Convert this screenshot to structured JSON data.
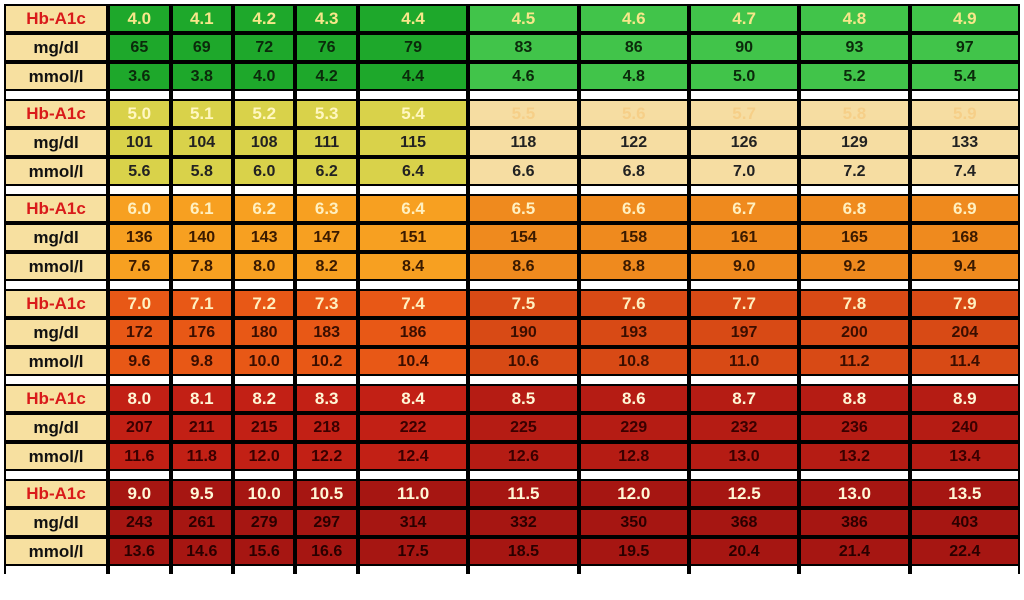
{
  "labels": {
    "hba1c": "Hb-A1c",
    "mgdl": "mg/dl",
    "mmoll": "mmol/l"
  },
  "layout": {
    "labelColWidth": 100,
    "narrowColWidth": 60,
    "wideColWidth": 106,
    "narrowCols": 4,
    "wideCols": 6,
    "rowHeightPx": 29,
    "spacerHeightPx": 8,
    "cellFontSize": 16,
    "hba1cFontSize": 17,
    "labelFontSize": 17,
    "borderColor": "#000000",
    "borderWidth": 2,
    "labelBg": "#f7e0a0",
    "labelColorHba1c": "#d91a1a",
    "labelColorOther": "#111111"
  },
  "groups": [
    {
      "hba1c": [
        "4.0",
        "4.1",
        "4.2",
        "4.3",
        "4.4",
        "4.5",
        "4.6",
        "4.7",
        "4.8",
        "4.9"
      ],
      "mgdl": [
        "65",
        "69",
        "72",
        "76",
        "79",
        "83",
        "86",
        "90",
        "93",
        "97"
      ],
      "mmoll": [
        "3.6",
        "3.8",
        "4.0",
        "4.2",
        "4.4",
        "4.6",
        "4.8",
        "5.0",
        "5.2",
        "5.4"
      ],
      "hba1cBg": [
        "#1ea82b",
        "#1ea82b",
        "#1ea82b",
        "#1ea82b",
        "#1ea82b",
        "#41c44a",
        "#41c44a",
        "#41c44a",
        "#41c44a",
        "#41c44a"
      ],
      "hba1cTextColor": [
        "#f7e78a",
        "#f7e78a",
        "#f7e78a",
        "#f7e78a",
        "#f7e78a",
        "#f7e78a",
        "#f7e78a",
        "#f7e78a",
        "#f7e78a",
        "#f7e78a"
      ],
      "mgdlBg": [
        "#1ea82b",
        "#1ea82b",
        "#1ea82b",
        "#1ea82b",
        "#1ea82b",
        "#41c44a",
        "#41c44a",
        "#41c44a",
        "#41c44a",
        "#41c44a"
      ],
      "mgdlTextColor": [
        "#0b2a0b",
        "#0b2a0b",
        "#0b2a0b",
        "#0b2a0b",
        "#0b2a0b",
        "#0b2a0b",
        "#0b2a0b",
        "#0b2a0b",
        "#0b2a0b",
        "#0b2a0b"
      ],
      "mmollBg": [
        "#1ea82b",
        "#1ea82b",
        "#1ea82b",
        "#1ea82b",
        "#1ea82b",
        "#41c44a",
        "#41c44a",
        "#41c44a",
        "#41c44a",
        "#41c44a"
      ],
      "mmollTextColor": [
        "#0b2a0b",
        "#0b2a0b",
        "#0b2a0b",
        "#0b2a0b",
        "#0b2a0b",
        "#0b2a0b",
        "#0b2a0b",
        "#0b2a0b",
        "#0b2a0b",
        "#0b2a0b"
      ]
    },
    {
      "hba1c": [
        "5.0",
        "5.1",
        "5.2",
        "5.3",
        "5.4",
        "5.5",
        "5.6",
        "5.7",
        "5.8",
        "5.9"
      ],
      "mgdl": [
        "101",
        "104",
        "108",
        "111",
        "115",
        "118",
        "122",
        "126",
        "129",
        "133"
      ],
      "mmoll": [
        "5.6",
        "5.8",
        "6.0",
        "6.2",
        "6.4",
        "6.6",
        "6.8",
        "7.0",
        "7.2",
        "7.4"
      ],
      "hba1cBg": [
        "#d9d24a",
        "#d9d24a",
        "#d9d24a",
        "#d9d24a",
        "#d9d24a",
        "#f6dda2",
        "#f6dda2",
        "#f6dda2",
        "#f6dda2",
        "#f6dda2"
      ],
      "hba1cTextColor": [
        "#fff7c0",
        "#fff7c0",
        "#fff7c0",
        "#fff7c0",
        "#fff7c0",
        "#f6cf88",
        "#f6cf88",
        "#f6cf88",
        "#f6cf88",
        "#f6cf88"
      ],
      "mgdlBg": [
        "#d9d24a",
        "#d9d24a",
        "#d9d24a",
        "#d9d24a",
        "#d9d24a",
        "#f6dda2",
        "#f6dda2",
        "#f6dda2",
        "#f6dda2",
        "#f6dda2"
      ],
      "mgdlTextColor": [
        "#222222",
        "#222222",
        "#222222",
        "#222222",
        "#222222",
        "#222222",
        "#222222",
        "#222222",
        "#222222",
        "#222222"
      ],
      "mmollBg": [
        "#d9d24a",
        "#d9d24a",
        "#d9d24a",
        "#d9d24a",
        "#d9d24a",
        "#f6dda2",
        "#f6dda2",
        "#f6dda2",
        "#f6dda2",
        "#f6dda2"
      ],
      "mmollTextColor": [
        "#222222",
        "#222222",
        "#222222",
        "#222222",
        "#222222",
        "#222222",
        "#222222",
        "#222222",
        "#222222",
        "#222222"
      ]
    },
    {
      "hba1c": [
        "6.0",
        "6.1",
        "6.2",
        "6.3",
        "6.4",
        "6.5",
        "6.6",
        "6.7",
        "6.8",
        "6.9"
      ],
      "mgdl": [
        "136",
        "140",
        "143",
        "147",
        "151",
        "154",
        "158",
        "161",
        "165",
        "168"
      ],
      "mmoll": [
        "7.6",
        "7.8",
        "8.0",
        "8.2",
        "8.4",
        "8.6",
        "8.8",
        "9.0",
        "9.2",
        "9.4"
      ],
      "hba1cBg": [
        "#f7a021",
        "#f7a021",
        "#f7a021",
        "#f7a021",
        "#f7a021",
        "#ef8a1e",
        "#ef8a1e",
        "#ef8a1e",
        "#ef8a1e",
        "#ef8a1e"
      ],
      "hba1cTextColor": [
        "#fff0c0",
        "#fff0c0",
        "#fff0c0",
        "#fff0c0",
        "#fff0c0",
        "#fff0c0",
        "#fff0c0",
        "#fff0c0",
        "#fff0c0",
        "#fff0c0"
      ],
      "mgdlBg": [
        "#f7a021",
        "#f7a021",
        "#f7a021",
        "#f7a021",
        "#f7a021",
        "#ef8a1e",
        "#ef8a1e",
        "#ef8a1e",
        "#ef8a1e",
        "#ef8a1e"
      ],
      "mgdlTextColor": [
        "#3a1a00",
        "#3a1a00",
        "#3a1a00",
        "#3a1a00",
        "#3a1a00",
        "#3a1a00",
        "#3a1a00",
        "#3a1a00",
        "#3a1a00",
        "#3a1a00"
      ],
      "mmollBg": [
        "#f7a021",
        "#f7a021",
        "#f7a021",
        "#f7a021",
        "#f7a021",
        "#ef8a1e",
        "#ef8a1e",
        "#ef8a1e",
        "#ef8a1e",
        "#ef8a1e"
      ],
      "mmollTextColor": [
        "#3a1a00",
        "#3a1a00",
        "#3a1a00",
        "#3a1a00",
        "#3a1a00",
        "#3a1a00",
        "#3a1a00",
        "#3a1a00",
        "#3a1a00",
        "#3a1a00"
      ]
    },
    {
      "hba1c": [
        "7.0",
        "7.1",
        "7.2",
        "7.3",
        "7.4",
        "7.5",
        "7.6",
        "7.7",
        "7.8",
        "7.9"
      ],
      "mgdl": [
        "172",
        "176",
        "180",
        "183",
        "186",
        "190",
        "193",
        "197",
        "200",
        "204"
      ],
      "mmoll": [
        "9.6",
        "9.8",
        "10.0",
        "10.2",
        "10.4",
        "10.6",
        "10.8",
        "11.0",
        "11.2",
        "11.4"
      ],
      "hba1cBg": [
        "#e85816",
        "#e85816",
        "#e85816",
        "#e85816",
        "#e85816",
        "#d84a15",
        "#d84a15",
        "#d84a15",
        "#d84a15",
        "#d84a15"
      ],
      "hba1cTextColor": [
        "#fff0c0",
        "#fff0c0",
        "#fff0c0",
        "#fff0c0",
        "#fff0c0",
        "#fff0c0",
        "#fff0c0",
        "#fff0c0",
        "#fff0c0",
        "#fff0c0"
      ],
      "mgdlBg": [
        "#e85816",
        "#e85816",
        "#e85816",
        "#e85816",
        "#e85816",
        "#d84a15",
        "#d84a15",
        "#d84a15",
        "#d84a15",
        "#d84a15"
      ],
      "mgdlTextColor": [
        "#3a0e00",
        "#3a0e00",
        "#3a0e00",
        "#3a0e00",
        "#3a0e00",
        "#3a0e00",
        "#3a0e00",
        "#3a0e00",
        "#3a0e00",
        "#3a0e00"
      ],
      "mmollBg": [
        "#e85816",
        "#e85816",
        "#e85816",
        "#e85816",
        "#e85816",
        "#d84a15",
        "#d84a15",
        "#d84a15",
        "#d84a15",
        "#d84a15"
      ],
      "mmollTextColor": [
        "#3a0e00",
        "#3a0e00",
        "#3a0e00",
        "#3a0e00",
        "#3a0e00",
        "#3a0e00",
        "#3a0e00",
        "#3a0e00",
        "#3a0e00",
        "#3a0e00"
      ]
    },
    {
      "hba1c": [
        "8.0",
        "8.1",
        "8.2",
        "8.3",
        "8.4",
        "8.5",
        "8.6",
        "8.7",
        "8.8",
        "8.9"
      ],
      "mgdl": [
        "207",
        "211",
        "215",
        "218",
        "222",
        "225",
        "229",
        "232",
        "236",
        "240"
      ],
      "mmoll": [
        "11.6",
        "11.8",
        "12.0",
        "12.2",
        "12.4",
        "12.6",
        "12.8",
        "13.0",
        "13.2",
        "13.4"
      ],
      "hba1cBg": [
        "#c22015",
        "#c22015",
        "#c22015",
        "#c22015",
        "#c22015",
        "#b51c14",
        "#b51c14",
        "#b51c14",
        "#b51c14",
        "#b51c14"
      ],
      "hba1cTextColor": [
        "#fff7d6",
        "#fff7d6",
        "#fff7d6",
        "#fff7d6",
        "#fff7d6",
        "#fff7d6",
        "#fff7d6",
        "#fff7d6",
        "#fff7d6",
        "#fff7d6"
      ],
      "mgdlBg": [
        "#c22015",
        "#c22015",
        "#c22015",
        "#c22015",
        "#c22015",
        "#b51c14",
        "#b51c14",
        "#b51c14",
        "#b51c14",
        "#b51c14"
      ],
      "mgdlTextColor": [
        "#3a0000",
        "#3a0000",
        "#3a0000",
        "#3a0000",
        "#3a0000",
        "#3a0000",
        "#3a0000",
        "#3a0000",
        "#3a0000",
        "#3a0000"
      ],
      "mmollBg": [
        "#c22015",
        "#c22015",
        "#c22015",
        "#c22015",
        "#c22015",
        "#b51c14",
        "#b51c14",
        "#b51c14",
        "#b51c14",
        "#b51c14"
      ],
      "mmollTextColor": [
        "#3a0000",
        "#3a0000",
        "#3a0000",
        "#3a0000",
        "#3a0000",
        "#3a0000",
        "#3a0000",
        "#3a0000",
        "#3a0000",
        "#3a0000"
      ]
    },
    {
      "hba1c": [
        "9.0",
        "9.5",
        "10.0",
        "10.5",
        "11.0",
        "11.5",
        "12.0",
        "12.5",
        "13.0",
        "13.5"
      ],
      "mgdl": [
        "243",
        "261",
        "279",
        "297",
        "314",
        "332",
        "350",
        "368",
        "386",
        "403"
      ],
      "mmoll": [
        "13.6",
        "14.6",
        "15.6",
        "16.6",
        "17.5",
        "18.5",
        "19.5",
        "20.4",
        "21.4",
        "22.4"
      ],
      "hba1cBg": [
        "#a61612",
        "#a61612",
        "#a61612",
        "#a61612",
        "#a61612",
        "#a61612",
        "#a61612",
        "#a61612",
        "#a61612",
        "#a61612"
      ],
      "hba1cTextColor": [
        "#fff7d6",
        "#fff7d6",
        "#fff7d6",
        "#fff7d6",
        "#fff7d6",
        "#fff7d6",
        "#fff7d6",
        "#fff7d6",
        "#fff7d6",
        "#fff7d6"
      ],
      "mgdlBg": [
        "#a61612",
        "#a61612",
        "#a61612",
        "#a61612",
        "#a61612",
        "#a61612",
        "#a61612",
        "#a61612",
        "#a61612",
        "#a61612"
      ],
      "mgdlTextColor": [
        "#2a0000",
        "#2a0000",
        "#2a0000",
        "#2a0000",
        "#2a0000",
        "#2a0000",
        "#2a0000",
        "#2a0000",
        "#2a0000",
        "#2a0000"
      ],
      "mmollBg": [
        "#a61612",
        "#a61612",
        "#a61612",
        "#a61612",
        "#a61612",
        "#a61612",
        "#a61612",
        "#a61612",
        "#a61612",
        "#a61612"
      ],
      "mmollTextColor": [
        "#2a0000",
        "#2a0000",
        "#2a0000",
        "#2a0000",
        "#2a0000",
        "#2a0000",
        "#2a0000",
        "#2a0000",
        "#2a0000",
        "#2a0000"
      ]
    }
  ]
}
